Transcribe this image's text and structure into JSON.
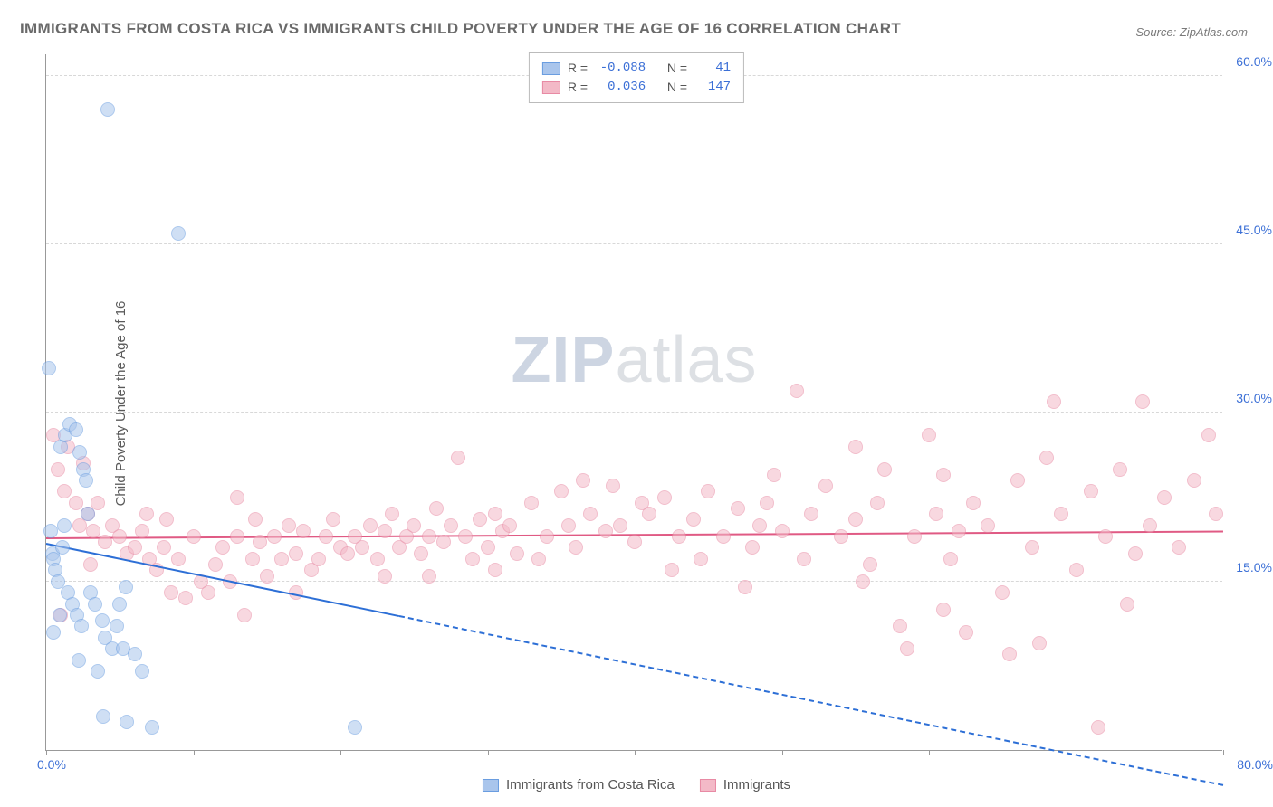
{
  "title": "IMMIGRANTS FROM COSTA RICA VS IMMIGRANTS CHILD POVERTY UNDER THE AGE OF 16 CORRELATION CHART",
  "source": "Source: ZipAtlas.com",
  "ylabel": "Child Poverty Under the Age of 16",
  "watermark_a": "ZIP",
  "watermark_b": "atlas",
  "chart": {
    "type": "scatter",
    "xlim": [
      0,
      80
    ],
    "ylim": [
      0,
      62
    ],
    "x_min_label": "0.0%",
    "x_max_label": "80.0%",
    "ytick_labels": [
      "15.0%",
      "30.0%",
      "45.0%",
      "60.0%"
    ],
    "ytick_values": [
      15,
      30,
      45,
      60
    ],
    "xtick_values": [
      0,
      10,
      20,
      30,
      40,
      50,
      60,
      70,
      80
    ],
    "background_color": "#ffffff",
    "grid_color": "#d8d8d8",
    "marker_radius": 8,
    "marker_opacity": 0.55,
    "series": [
      {
        "name": "Immigrants from Costa Rica",
        "label": "Immigrants from Costa Rica",
        "color_fill": "#a9c5ec",
        "color_stroke": "#6a9de0",
        "R_label": "R =",
        "R": "-0.088",
        "N_label": "N =",
        "N": "41",
        "trend": {
          "y_at_xmin": 18.5,
          "y_at_xmax": -3.0,
          "color": "#2d6fd6",
          "solid_until_x": 24
        },
        "points": [
          [
            0.4,
            17.5
          ],
          [
            0.5,
            17.0
          ],
          [
            0.6,
            16.0
          ],
          [
            0.8,
            15.0
          ],
          [
            0.9,
            12.0
          ],
          [
            0.5,
            10.5
          ],
          [
            1.0,
            27.0
          ],
          [
            1.3,
            28.0
          ],
          [
            1.6,
            29.0
          ],
          [
            2.0,
            28.5
          ],
          [
            2.3,
            26.5
          ],
          [
            2.5,
            25.0
          ],
          [
            2.7,
            24.0
          ],
          [
            2.8,
            21.0
          ],
          [
            1.1,
            18.0
          ],
          [
            1.5,
            14.0
          ],
          [
            1.8,
            13.0
          ],
          [
            2.1,
            12.0
          ],
          [
            2.4,
            11.0
          ],
          [
            3.0,
            14.0
          ],
          [
            3.3,
            13.0
          ],
          [
            3.8,
            11.5
          ],
          [
            4.0,
            10.0
          ],
          [
            4.5,
            9.0
          ],
          [
            4.8,
            11.0
          ],
          [
            5.2,
            9.0
          ],
          [
            6.5,
            7.0
          ],
          [
            6.0,
            8.5
          ],
          [
            5.0,
            13.0
          ],
          [
            5.4,
            14.5
          ],
          [
            2.2,
            8.0
          ],
          [
            3.5,
            7.0
          ],
          [
            3.9,
            3.0
          ],
          [
            5.5,
            2.5
          ],
          [
            7.2,
            2.0
          ],
          [
            9.0,
            46.0
          ],
          [
            0.2,
            34.0
          ],
          [
            0.3,
            19.5
          ],
          [
            4.2,
            57.0
          ],
          [
            21.0,
            2.0
          ],
          [
            1.2,
            20.0
          ]
        ]
      },
      {
        "name": "Immigrants",
        "label": "Immigrants",
        "color_fill": "#f3b9c7",
        "color_stroke": "#e88aa4",
        "R_label": "R =",
        "R": "0.036",
        "N_label": "N =",
        "N": "147",
        "trend": {
          "y_at_xmin": 19.0,
          "y_at_xmax": 19.6,
          "color": "#e05a84",
          "solid_until_x": 80
        },
        "points": [
          [
            0.5,
            28.0
          ],
          [
            0.8,
            25.0
          ],
          [
            1.2,
            23.0
          ],
          [
            1.5,
            27.0
          ],
          [
            2.0,
            22.0
          ],
          [
            2.3,
            20.0
          ],
          [
            2.8,
            21.0
          ],
          [
            3.2,
            19.5
          ],
          [
            3.5,
            22.0
          ],
          [
            4.0,
            18.5
          ],
          [
            4.5,
            20.0
          ],
          [
            5.0,
            19.0
          ],
          [
            5.5,
            17.5
          ],
          [
            6.0,
            18.0
          ],
          [
            6.5,
            19.5
          ],
          [
            7.0,
            17.0
          ],
          [
            7.5,
            16.0
          ],
          [
            8.0,
            18.0
          ],
          [
            8.5,
            14.0
          ],
          [
            9.0,
            17.0
          ],
          [
            9.5,
            13.5
          ],
          [
            10.0,
            19.0
          ],
          [
            10.5,
            15.0
          ],
          [
            11.0,
            14.0
          ],
          [
            11.5,
            16.5
          ],
          [
            12.0,
            18.0
          ],
          [
            12.5,
            15.0
          ],
          [
            13.0,
            19.0
          ],
          [
            13.5,
            12.0
          ],
          [
            14.0,
            17.0
          ],
          [
            14.5,
            18.5
          ],
          [
            15.0,
            15.5
          ],
          [
            15.5,
            19.0
          ],
          [
            16.0,
            17.0
          ],
          [
            16.5,
            20.0
          ],
          [
            17.0,
            17.5
          ],
          [
            17.5,
            19.5
          ],
          [
            18.0,
            16.0
          ],
          [
            18.5,
            17.0
          ],
          [
            19.0,
            19.0
          ],
          [
            19.5,
            20.5
          ],
          [
            20.0,
            18.0
          ],
          [
            20.5,
            17.5
          ],
          [
            21.0,
            19.0
          ],
          [
            21.5,
            18.0
          ],
          [
            22.0,
            20.0
          ],
          [
            22.5,
            17.0
          ],
          [
            23.0,
            19.5
          ],
          [
            23.5,
            21.0
          ],
          [
            24.0,
            18.0
          ],
          [
            24.5,
            19.0
          ],
          [
            25.0,
            20.0
          ],
          [
            25.5,
            17.5
          ],
          [
            26.0,
            19.0
          ],
          [
            26.5,
            21.5
          ],
          [
            27.0,
            18.5
          ],
          [
            27.5,
            20.0
          ],
          [
            28.0,
            26.0
          ],
          [
            28.5,
            19.0
          ],
          [
            29.0,
            17.0
          ],
          [
            29.5,
            20.5
          ],
          [
            30.0,
            18.0
          ],
          [
            30.5,
            21.0
          ],
          [
            31.0,
            19.5
          ],
          [
            31.5,
            20.0
          ],
          [
            32.0,
            17.5
          ],
          [
            33.0,
            22.0
          ],
          [
            34.0,
            19.0
          ],
          [
            35.0,
            23.0
          ],
          [
            35.5,
            20.0
          ],
          [
            36.0,
            18.0
          ],
          [
            37.0,
            21.0
          ],
          [
            38.0,
            19.5
          ],
          [
            38.5,
            23.5
          ],
          [
            39.0,
            20.0
          ],
          [
            40.0,
            18.5
          ],
          [
            41.0,
            21.0
          ],
          [
            42.0,
            22.5
          ],
          [
            43.0,
            19.0
          ],
          [
            44.0,
            20.5
          ],
          [
            44.5,
            17.0
          ],
          [
            45.0,
            23.0
          ],
          [
            46.0,
            19.0
          ],
          [
            47.0,
            21.5
          ],
          [
            48.0,
            18.0
          ],
          [
            48.5,
            20.0
          ],
          [
            49.0,
            22.0
          ],
          [
            50.0,
            19.5
          ],
          [
            51.0,
            32.0
          ],
          [
            51.5,
            17.0
          ],
          [
            52.0,
            21.0
          ],
          [
            53.0,
            23.5
          ],
          [
            54.0,
            19.0
          ],
          [
            55.0,
            20.5
          ],
          [
            55.5,
            15.0
          ],
          [
            56.0,
            16.5
          ],
          [
            56.5,
            22.0
          ],
          [
            57.0,
            25.0
          ],
          [
            58.0,
            11.0
          ],
          [
            58.5,
            9.0
          ],
          [
            59.0,
            19.0
          ],
          [
            60.0,
            28.0
          ],
          [
            60.5,
            21.0
          ],
          [
            61.0,
            24.5
          ],
          [
            61.5,
            17.0
          ],
          [
            62.0,
            19.5
          ],
          [
            62.5,
            10.5
          ],
          [
            63.0,
            22.0
          ],
          [
            64.0,
            20.0
          ],
          [
            65.0,
            14.0
          ],
          [
            65.5,
            8.5
          ],
          [
            66.0,
            24.0
          ],
          [
            67.0,
            18.0
          ],
          [
            68.0,
            26.0
          ],
          [
            68.5,
            31.0
          ],
          [
            69.0,
            21.0
          ],
          [
            70.0,
            16.0
          ],
          [
            71.0,
            23.0
          ],
          [
            71.5,
            2.0
          ],
          [
            72.0,
            19.0
          ],
          [
            73.0,
            25.0
          ],
          [
            74.0,
            17.5
          ],
          [
            74.5,
            31.0
          ],
          [
            75.0,
            20.0
          ],
          [
            76.0,
            22.5
          ],
          [
            77.0,
            18.0
          ],
          [
            78.0,
            24.0
          ],
          [
            79.0,
            28.0
          ],
          [
            79.5,
            21.0
          ],
          [
            1.0,
            12.0
          ],
          [
            2.5,
            25.5
          ],
          [
            6.8,
            21.0
          ],
          [
            13.0,
            22.5
          ],
          [
            17.0,
            14.0
          ],
          [
            23.0,
            15.5
          ],
          [
            30.5,
            16.0
          ],
          [
            36.5,
            24.0
          ],
          [
            42.5,
            16.0
          ],
          [
            49.5,
            24.5
          ],
          [
            55.0,
            27.0
          ],
          [
            61.0,
            12.5
          ],
          [
            67.5,
            9.5
          ],
          [
            73.5,
            13.0
          ],
          [
            3.0,
            16.5
          ],
          [
            8.2,
            20.5
          ],
          [
            14.2,
            20.5
          ],
          [
            26.0,
            15.5
          ],
          [
            33.5,
            17.0
          ],
          [
            40.5,
            22.0
          ],
          [
            47.5,
            14.5
          ]
        ]
      }
    ]
  }
}
